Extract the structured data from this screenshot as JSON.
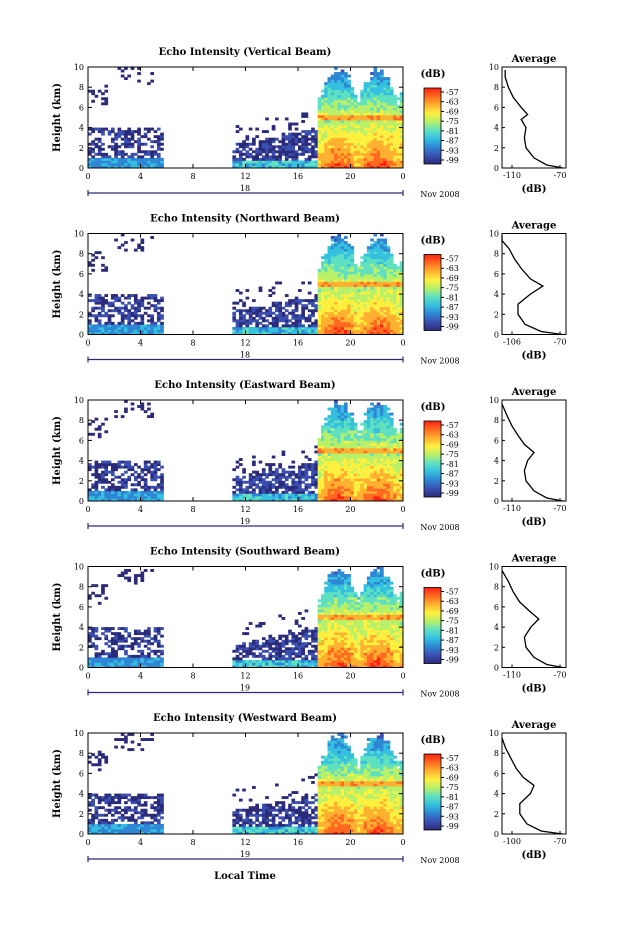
{
  "figure": {
    "xlabel": "Local Time",
    "date_suffix": "Nov 2008",
    "colorbar_unit": "(dB)",
    "avg_title": "Average",
    "avg_xlabel": "(dB)"
  },
  "colors": {
    "colormap": [
      "#2b2b7a",
      "#3a4fb0",
      "#2e86d4",
      "#35c0e0",
      "#5fe0c0",
      "#b8f06a",
      "#fff040",
      "#ffb030",
      "#ff6a20",
      "#ff2010"
    ]
  },
  "chart_data": [
    {
      "type": "heatmap",
      "title": "Echo Intensity (Vertical Beam)",
      "ylabel": "Height (km)",
      "xlim": [
        0,
        24
      ],
      "ylim": [
        0,
        10
      ],
      "xticks": [
        "0",
        "4",
        "8",
        "12",
        "16",
        "20",
        "0"
      ],
      "yticks": [
        "0",
        "2",
        "4",
        "6",
        "8",
        "10"
      ],
      "day_label": "18",
      "colorbar_ticks": [
        "-57",
        "-63",
        "-69",
        "-75",
        "-81",
        "-87",
        "-93",
        "-99"
      ],
      "colorbar_range": [
        -99,
        -57
      ],
      "average": {
        "xlim": [
          -110,
          -70
        ],
        "xticks": [
          "-110",
          "-70"
        ],
        "x": [
          -72,
          -82,
          -90,
          -95,
          -96,
          -95,
          -98,
          -94,
          -98,
          -103,
          -106,
          -108,
          -108
        ],
        "y": [
          0,
          0.3,
          1,
          2,
          3,
          4,
          4.8,
          5.3,
          6,
          7,
          8,
          9,
          9.7
        ]
      }
    },
    {
      "type": "heatmap",
      "title": "Echo Intensity (Northward Beam)",
      "ylabel": "Height (km)",
      "xlim": [
        0,
        24
      ],
      "ylim": [
        0,
        10
      ],
      "xticks": [
        "0",
        "4",
        "8",
        "12",
        "16",
        "20",
        "0"
      ],
      "yticks": [
        "0",
        "2",
        "4",
        "6",
        "8",
        "10"
      ],
      "day_label": "18",
      "colorbar_ticks": [
        "-57",
        "-63",
        "-69",
        "-75",
        "-81",
        "-87",
        "-93",
        "-99"
      ],
      "colorbar_range": [
        -99,
        -57
      ],
      "average": {
        "xlim": [
          -106,
          -70
        ],
        "xticks": [
          "-106",
          "-70"
        ],
        "x": [
          -72,
          -84,
          -93,
          -97,
          -97,
          -90,
          -83,
          -90,
          -95,
          -99,
          -102,
          -106,
          -106
        ],
        "y": [
          0,
          0.3,
          1,
          2,
          3,
          4,
          4.8,
          5.5,
          6.5,
          7.5,
          8.5,
          9.3,
          9.8
        ]
      }
    },
    {
      "type": "heatmap",
      "title": "Echo Intensity (Eastward Beam)",
      "ylabel": "Height (km)",
      "xlim": [
        0,
        24
      ],
      "ylim": [
        0,
        10
      ],
      "xticks": [
        "0",
        "4",
        "8",
        "12",
        "16",
        "20",
        "0"
      ],
      "yticks": [
        "0",
        "2",
        "4",
        "6",
        "8",
        "10"
      ],
      "day_label": "19",
      "colorbar_ticks": [
        "-57",
        "-63",
        "-69",
        "-75",
        "-81",
        "-87",
        "-93",
        "-99"
      ],
      "colorbar_range": [
        -99,
        -57
      ],
      "average": {
        "xlim": [
          -110,
          -70
        ],
        "xticks": [
          "-110",
          "-70"
        ],
        "x": [
          -72,
          -82,
          -90,
          -95,
          -96,
          -94,
          -90,
          -96,
          -100,
          -104,
          -107,
          -110
        ],
        "y": [
          0,
          0.3,
          1,
          2,
          3,
          4,
          4.8,
          5.6,
          6.5,
          7.5,
          8.5,
          9.6
        ]
      }
    },
    {
      "type": "heatmap",
      "title": "Echo Intensity (Southward Beam)",
      "ylabel": "Height (km)",
      "xlim": [
        0,
        24
      ],
      "ylim": [
        0,
        10
      ],
      "xticks": [
        "0",
        "4",
        "8",
        "12",
        "16",
        "20",
        "0"
      ],
      "yticks": [
        "0",
        "2",
        "4",
        "6",
        "8",
        "10"
      ],
      "day_label": "19",
      "colorbar_ticks": [
        "-57",
        "-63",
        "-69",
        "-75",
        "-81",
        "-87",
        "-93",
        "-99"
      ],
      "colorbar_range": [
        -99,
        -57
      ],
      "average": {
        "xlim": [
          -110,
          -70
        ],
        "xticks": [
          "-110",
          "-70"
        ],
        "x": [
          -72,
          -82,
          -90,
          -95,
          -96,
          -92,
          -87,
          -93,
          -99,
          -103,
          -106,
          -110
        ],
        "y": [
          0,
          0.3,
          1,
          2,
          3,
          4,
          4.8,
          5.6,
          6.5,
          7.5,
          8.5,
          9.6
        ]
      }
    },
    {
      "type": "heatmap",
      "title": "Echo Intensity (Westward Beam)",
      "ylabel": "Height (km)",
      "xlim": [
        0,
        24
      ],
      "ylim": [
        0,
        10
      ],
      "xticks": [
        "0",
        "4",
        "8",
        "12",
        "16",
        "20",
        "0"
      ],
      "yticks": [
        "0",
        "2",
        "4",
        "6",
        "8",
        "10"
      ],
      "day_label": "19",
      "colorbar_ticks": [
        "-57",
        "-63",
        "-69",
        "-75",
        "-81",
        "-87",
        "-93",
        "-99"
      ],
      "colorbar_range": [
        -99,
        -57
      ],
      "average": {
        "xlim": [
          -106,
          -70
        ],
        "xticks": [
          "-100",
          "-70"
        ],
        "x": [
          -72,
          -84,
          -92,
          -96,
          -96,
          -90,
          -88,
          -94,
          -98,
          -101,
          -104,
          -106
        ],
        "y": [
          0,
          0.3,
          1,
          2,
          3,
          4,
          4.8,
          5.6,
          6.5,
          7.5,
          8.5,
          9.5
        ]
      }
    }
  ]
}
